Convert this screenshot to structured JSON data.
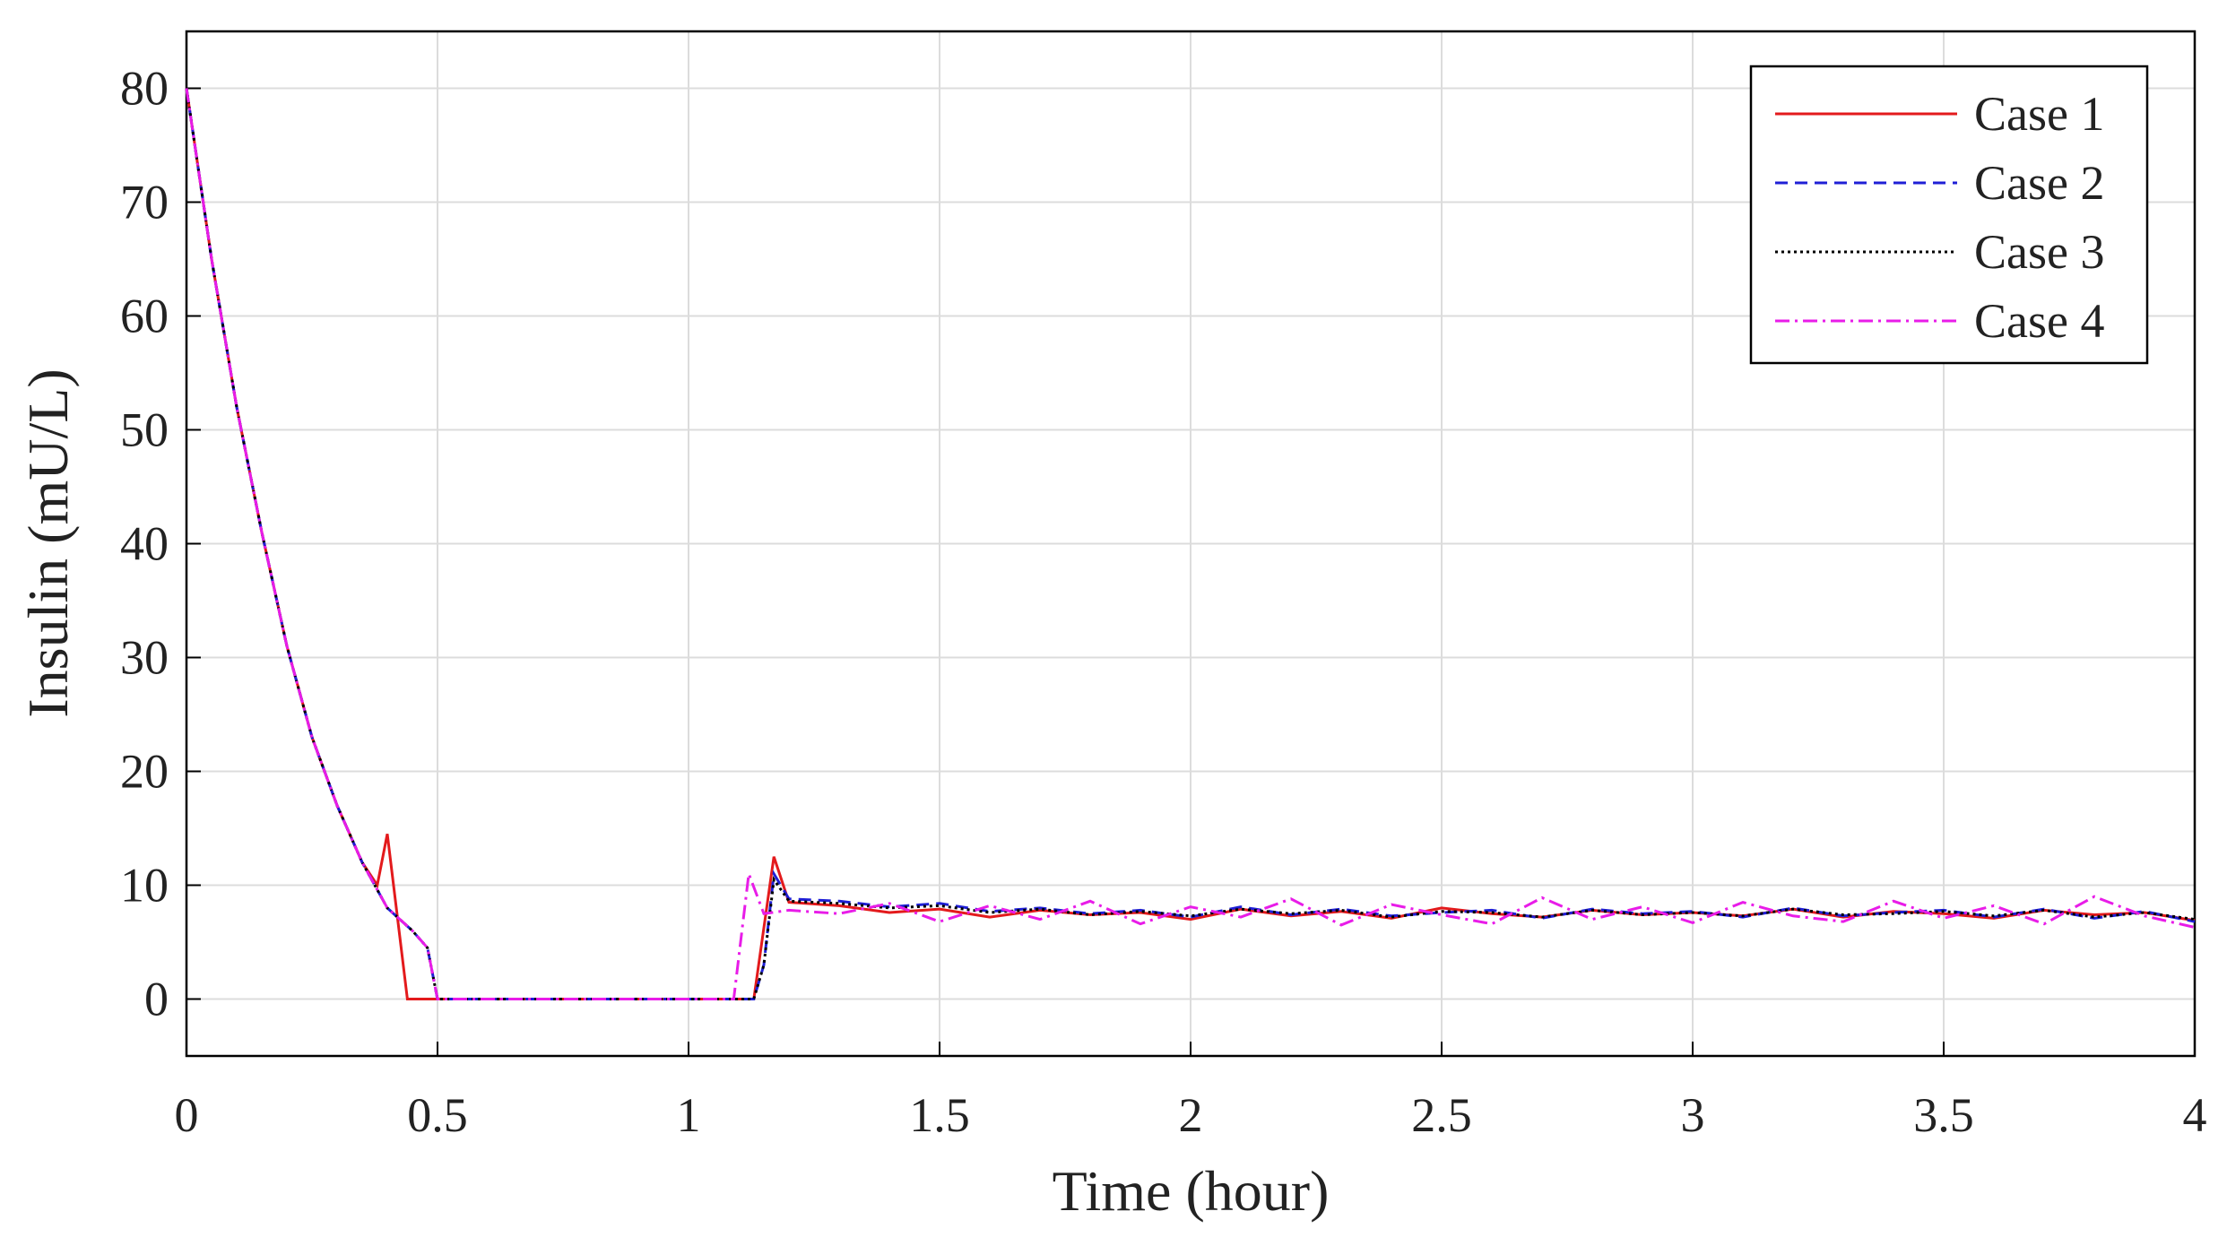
{
  "chart_data": {
    "type": "line",
    "xlabel": "Time (hour)",
    "ylabel": "Insulin (mU/L)",
    "xlim": [
      0,
      4
    ],
    "ylim": [
      -5,
      85
    ],
    "xticks": [
      0,
      0.5,
      1,
      1.5,
      2,
      2.5,
      3,
      3.5,
      4
    ],
    "yticks": [
      0,
      10,
      20,
      30,
      40,
      50,
      60,
      70,
      80
    ],
    "grid": true,
    "legend": "northeast",
    "series": [
      {
        "name": "Case 1",
        "color": "#e31a1c",
        "dash": "solid",
        "x": [
          0,
          0.05,
          0.1,
          0.15,
          0.2,
          0.25,
          0.3,
          0.35,
          0.38,
          0.4,
          0.44,
          1.13,
          1.17,
          1.2,
          1.3,
          1.4,
          1.5,
          1.6,
          1.7,
          1.8,
          1.9,
          2.0,
          2.1,
          2.2,
          2.3,
          2.4,
          2.5,
          2.6,
          2.7,
          2.8,
          2.9,
          3.0,
          3.1,
          3.2,
          3.3,
          3.4,
          3.5,
          3.6,
          3.7,
          3.8,
          3.9,
          4.0
        ],
        "values": [
          80,
          65,
          52,
          41,
          31,
          23,
          17,
          12,
          10,
          14.5,
          0,
          0,
          12.5,
          8.5,
          8.2,
          7.6,
          7.9,
          7.2,
          7.8,
          7.4,
          7.6,
          7.0,
          7.9,
          7.3,
          7.7,
          7.1,
          8.0,
          7.5,
          7.2,
          7.8,
          7.4,
          7.6,
          7.3,
          7.9,
          7.2,
          7.7,
          7.5,
          7.1,
          7.8,
          7.4,
          7.6,
          6.9
        ]
      },
      {
        "name": "Case 2",
        "color": "#1f1fd6",
        "dash": "dashed",
        "x": [
          0,
          0.05,
          0.1,
          0.15,
          0.2,
          0.25,
          0.3,
          0.35,
          0.4,
          0.45,
          0.48,
          0.5,
          1.13,
          1.15,
          1.17,
          1.2,
          1.3,
          1.4,
          1.5,
          1.6,
          1.7,
          1.8,
          1.9,
          2.0,
          2.1,
          2.2,
          2.3,
          2.4,
          2.5,
          2.6,
          2.7,
          2.8,
          2.9,
          3.0,
          3.1,
          3.2,
          3.3,
          3.4,
          3.5,
          3.6,
          3.7,
          3.8,
          3.9,
          4.0
        ],
        "values": [
          80,
          65,
          52,
          41,
          31,
          23,
          17,
          12,
          8,
          6,
          4.5,
          0,
          0,
          3,
          11,
          8.8,
          8.6,
          8.1,
          8.4,
          7.7,
          8.0,
          7.5,
          7.8,
          7.2,
          8.1,
          7.4,
          7.9,
          7.3,
          7.6,
          7.8,
          7.1,
          7.9,
          7.5,
          7.7,
          7.2,
          8.0,
          7.3,
          7.6,
          7.8,
          7.2,
          7.9,
          7.1,
          7.7,
          6.8
        ]
      },
      {
        "name": "Case 3",
        "color": "#000000",
        "dash": "dotted",
        "x": [
          0,
          0.05,
          0.1,
          0.15,
          0.2,
          0.25,
          0.3,
          0.35,
          0.4,
          0.45,
          0.48,
          0.5,
          1.13,
          1.15,
          1.17,
          1.2,
          1.3,
          1.4,
          1.5,
          1.6,
          1.7,
          1.8,
          1.9,
          2.0,
          2.1,
          2.2,
          2.3,
          2.4,
          2.5,
          2.6,
          2.7,
          2.8,
          2.9,
          3.0,
          3.1,
          3.2,
          3.3,
          3.4,
          3.5,
          3.6,
          3.7,
          3.8,
          3.9,
          4.0
        ],
        "values": [
          80,
          65,
          52,
          41,
          31,
          23,
          17,
          12,
          8,
          6,
          4.5,
          0,
          0,
          3,
          10.5,
          8.6,
          8.4,
          8.0,
          8.2,
          7.6,
          7.9,
          7.4,
          7.7,
          7.3,
          7.9,
          7.5,
          7.8,
          7.2,
          7.7,
          7.6,
          7.2,
          7.8,
          7.4,
          7.6,
          7.3,
          7.9,
          7.4,
          7.5,
          7.7,
          7.3,
          7.8,
          7.2,
          7.6,
          7.0
        ]
      },
      {
        "name": "Case 4",
        "color": "#e81ce8",
        "dash": "dashdot",
        "x": [
          0,
          0.05,
          0.1,
          0.15,
          0.2,
          0.25,
          0.3,
          0.35,
          0.4,
          0.45,
          0.48,
          0.5,
          1.09,
          1.12,
          1.15,
          1.2,
          1.3,
          1.4,
          1.5,
          1.6,
          1.7,
          1.8,
          1.9,
          2.0,
          2.1,
          2.2,
          2.3,
          2.4,
          2.5,
          2.6,
          2.7,
          2.8,
          2.9,
          3.0,
          3.1,
          3.2,
          3.3,
          3.4,
          3.5,
          3.6,
          3.7,
          3.8,
          3.9,
          4.0
        ],
        "values": [
          80,
          65,
          52,
          41,
          31,
          23,
          17,
          12,
          8,
          6,
          4.5,
          0,
          0,
          11,
          7.5,
          7.8,
          7.5,
          8.4,
          6.8,
          8.2,
          7.0,
          8.6,
          6.6,
          8.1,
          7.2,
          8.8,
          6.5,
          8.3,
          7.4,
          6.6,
          8.9,
          7.0,
          8.1,
          6.7,
          8.5,
          7.3,
          6.8,
          8.6,
          7.1,
          8.2,
          6.6,
          9.0,
          7.3,
          6.3
        ]
      }
    ]
  }
}
